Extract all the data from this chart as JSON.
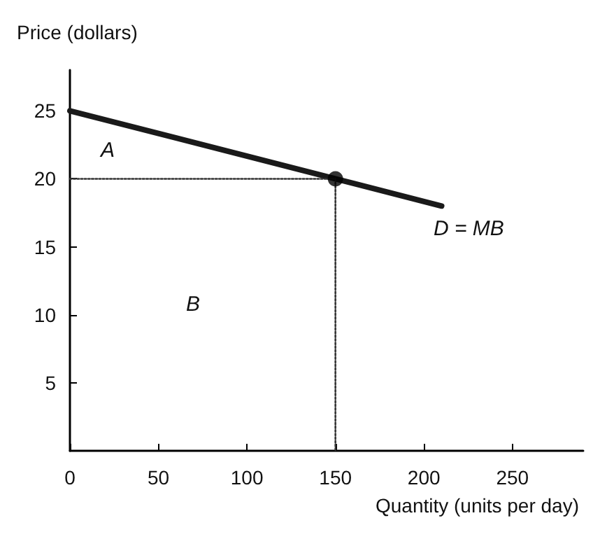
{
  "chart_data": {
    "type": "line",
    "xlabel": "Quantity (units per day)",
    "ylabel": "Price (dollars)",
    "xlim": [
      0,
      290
    ],
    "ylim": [
      0,
      28
    ],
    "xticks": [
      0,
      50,
      100,
      150,
      200,
      250
    ],
    "yticks": [
      5,
      10,
      15,
      20,
      25
    ],
    "grid": false,
    "series": [
      {
        "x": [
          0,
          210
        ],
        "values": [
          25,
          18
        ],
        "color": "#1a1a1a",
        "line_style": "solid",
        "marker": "none"
      },
      {
        "x": [
          0,
          150
        ],
        "values": [
          20,
          20
        ],
        "color": "#333333",
        "line_style": "dotted",
        "marker": "none"
      },
      {
        "x": [
          150,
          150
        ],
        "values": [
          20,
          0
        ],
        "color": "#333333",
        "line_style": "dotted",
        "marker": "none"
      },
      {
        "type": "scatter",
        "x": [
          150
        ],
        "values": [
          20
        ],
        "color": "#000000",
        "marker": "circle"
      }
    ],
    "annotations": [
      "A",
      "B",
      "D = MB"
    ]
  }
}
